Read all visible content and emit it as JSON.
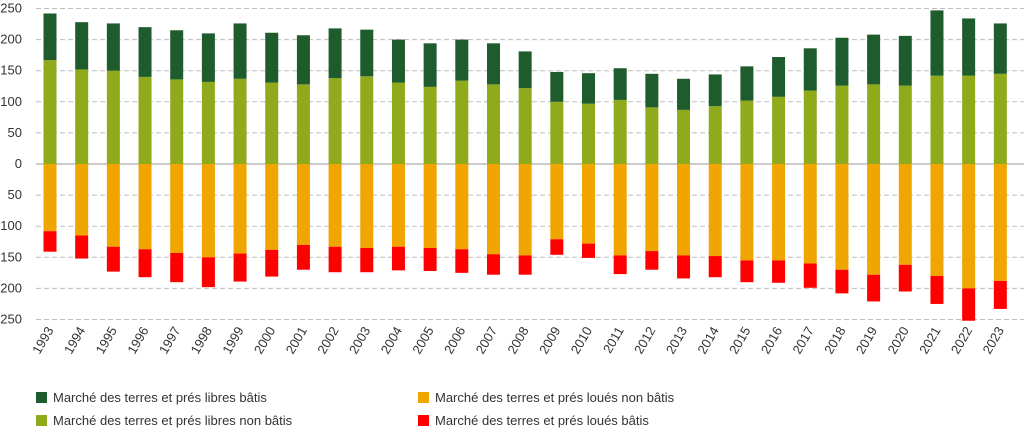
{
  "chart_data": {
    "type": "bar",
    "stacked": "diverging",
    "categories": [
      "1993",
      "1994",
      "1995",
      "1996",
      "1997",
      "1998",
      "1999",
      "2000",
      "2001",
      "2002",
      "2003",
      "2004",
      "2005",
      "2006",
      "2007",
      "2008",
      "2009",
      "2010",
      "2011",
      "2012",
      "2013",
      "2014",
      "2015",
      "2016",
      "2017",
      "2018",
      "2019",
      "2020",
      "2021",
      "2022",
      "2023"
    ],
    "ylim": [
      -250,
      250
    ],
    "y_ticks": [
      250,
      200,
      150,
      100,
      50,
      0,
      50,
      100,
      150,
      200,
      250
    ],
    "grid": "horizontal dashed",
    "legend_position": "bottom",
    "series": [
      {
        "name": "Marché des terres et prés libres non bâtis",
        "color": "#8faa1b",
        "direction": "up",
        "values": [
          167,
          152,
          150,
          140,
          136,
          132,
          137,
          131,
          128,
          138,
          141,
          131,
          124,
          134,
          128,
          122,
          100,
          97,
          103,
          91,
          87,
          93,
          102,
          108,
          118,
          126,
          128,
          126,
          142,
          142,
          145
        ]
      },
      {
        "name": "Marché des terres et prés libres bâtis",
        "color": "#1e5c2e",
        "direction": "up",
        "values": [
          75,
          76,
          76,
          80,
          79,
          78,
          89,
          80,
          79,
          80,
          75,
          69,
          70,
          66,
          66,
          59,
          48,
          49,
          51,
          54,
          50,
          51,
          55,
          64,
          68,
          77,
          80,
          80,
          105,
          92,
          81
        ]
      },
      {
        "name": "Marché des terres et prés loués non bâtis",
        "color": "#f0a500",
        "direction": "down",
        "values": [
          108,
          115,
          133,
          137,
          143,
          150,
          144,
          138,
          130,
          133,
          135,
          133,
          135,
          137,
          145,
          147,
          121,
          128,
          147,
          140,
          147,
          148,
          155,
          155,
          160,
          170,
          178,
          162,
          180,
          200,
          188
        ]
      },
      {
        "name": "Marché des terres et prés loués bâtis",
        "color": "#ff0000",
        "direction": "down",
        "values": [
          33,
          37,
          40,
          45,
          47,
          48,
          45,
          43,
          40,
          41,
          39,
          38,
          37,
          38,
          33,
          31,
          25,
          23,
          30,
          30,
          37,
          34,
          35,
          36,
          39,
          38,
          43,
          43,
          45,
          52,
          45
        ]
      }
    ]
  }
}
